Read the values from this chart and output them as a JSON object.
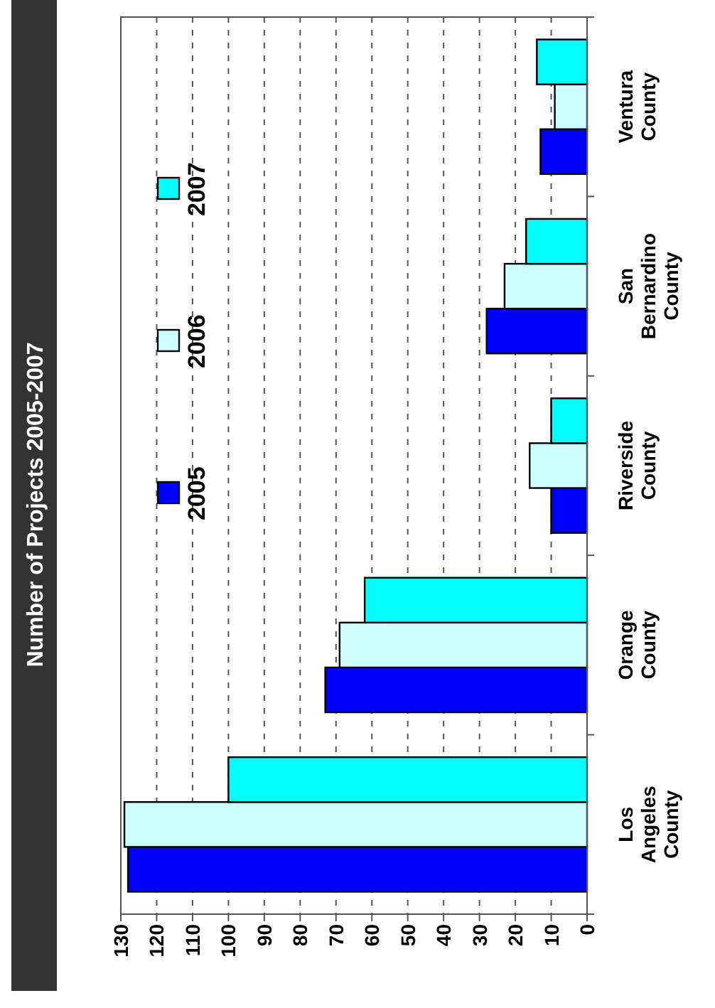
{
  "chart_data": {
    "type": "bar",
    "orientation": "horizontal",
    "title": "Number of Projects 2005-2007",
    "categories": [
      "Ventura County",
      "San Bernardino County",
      "Riverside County",
      "Orange County",
      "Los Angeles County"
    ],
    "series": [
      {
        "name": "2005",
        "color": "#0000ff",
        "values": [
          13,
          28,
          10,
          73,
          128
        ]
      },
      {
        "name": "2006",
        "color": "#ccffff",
        "values": [
          9,
          23,
          16,
          69,
          129
        ]
      },
      {
        "name": "2007",
        "color": "#00ffff",
        "values": [
          14,
          17,
          10,
          62,
          100
        ]
      }
    ],
    "xlim": [
      130,
      0
    ],
    "xticks": [
      130,
      120,
      110,
      100,
      90,
      80,
      70,
      60,
      50,
      40,
      30,
      20,
      10,
      0
    ],
    "grid": "x",
    "legend": "left"
  }
}
